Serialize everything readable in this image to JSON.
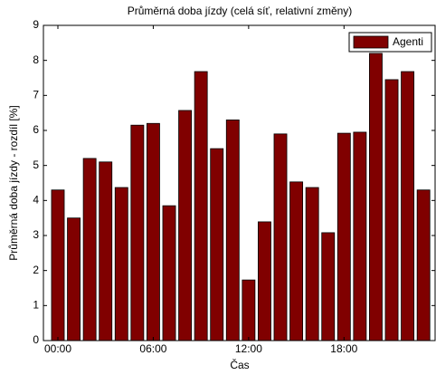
{
  "chart_data": {
    "type": "bar",
    "title": "Průměrná doba jízdy (celá síť, relativní změny)",
    "x_label": "Čas",
    "y_label": "Průměrná doba jízdy  - rozdíl [%]",
    "categories": [
      "00:00",
      null,
      null,
      null,
      null,
      null,
      "06:00",
      null,
      null,
      null,
      null,
      null,
      "12:00",
      null,
      null,
      null,
      null,
      null,
      "18:00",
      null,
      null,
      null,
      null,
      null
    ],
    "series": [
      {
        "name": "Agenti",
        "color": "#800000",
        "values": [
          4.3,
          3.5,
          5.2,
          5.1,
          4.37,
          6.15,
          6.2,
          3.85,
          6.57,
          7.68,
          5.48,
          6.3,
          1.73,
          3.39,
          5.9,
          4.53,
          4.37,
          3.08,
          5.92,
          5.95,
          8.2,
          7.45,
          7.68,
          4.3
        ]
      }
    ],
    "ylim": [
      0,
      9
    ],
    "yticks": [
      0,
      1,
      2,
      3,
      4,
      5,
      6,
      7,
      8,
      9
    ],
    "legend": "upper right"
  }
}
